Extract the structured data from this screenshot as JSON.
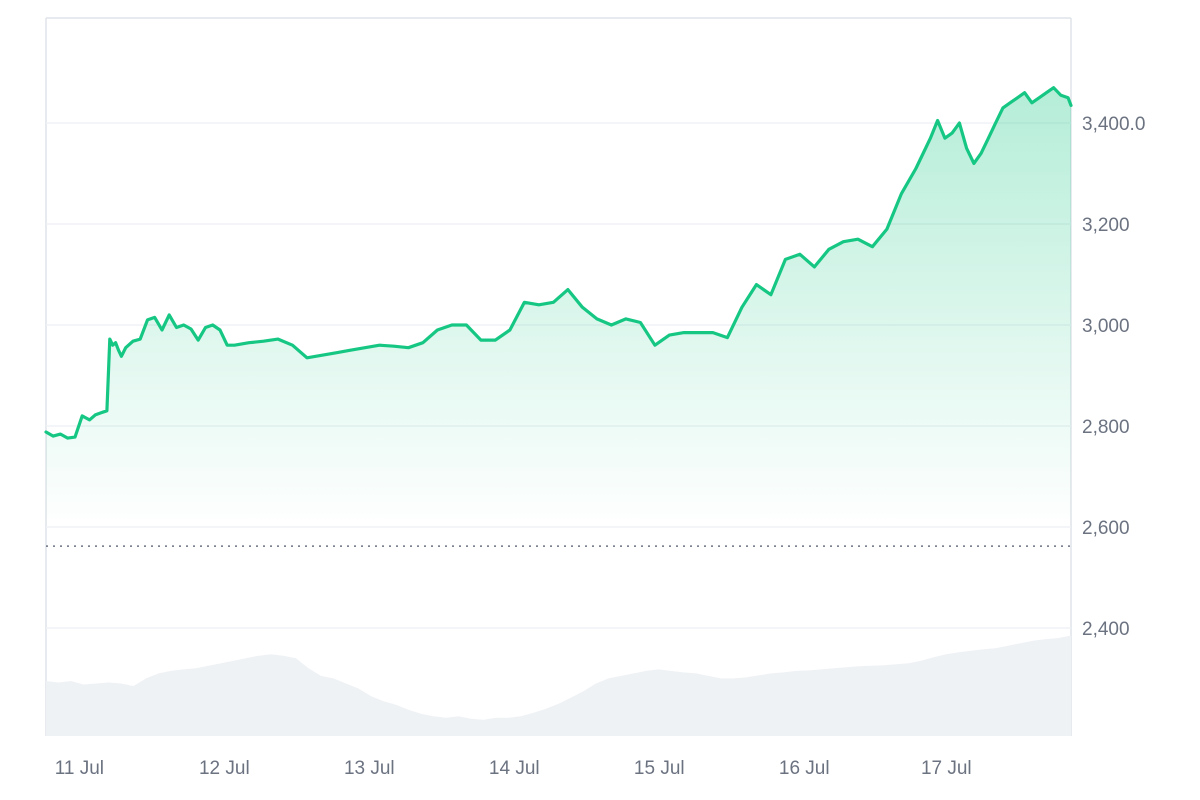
{
  "chart_data": {
    "type": "area",
    "y_axis": {
      "ticks": [
        2400,
        2600,
        2800,
        3000,
        3200,
        3400
      ],
      "tick_labels": [
        "2,400",
        "2,600",
        "2,800",
        "3,000",
        "3,200",
        "3,400.0"
      ],
      "range": [
        2186,
        3608
      ],
      "position": "right",
      "grid": true
    },
    "x_axis": {
      "tick_labels": [
        "11 Jul",
        "12 Jul",
        "13 Jul",
        "14 Jul",
        "15 Jul",
        "16 Jul",
        "17 Jul"
      ],
      "tick_values": [
        0.23,
        1.23,
        2.23,
        3.23,
        4.23,
        5.23,
        6.21
      ],
      "range": [
        0,
        7.07
      ]
    },
    "reference_line": {
      "value": 2562,
      "style": "dotted"
    },
    "series": [
      {
        "x": [
          0.0,
          0.05,
          0.1,
          0.15,
          0.2,
          0.25,
          0.3,
          0.34,
          0.38,
          0.42,
          0.44,
          0.46,
          0.48,
          0.5,
          0.52,
          0.55,
          0.6,
          0.65,
          0.7,
          0.75,
          0.8,
          0.85,
          0.9,
          0.95,
          1.0,
          1.05,
          1.1,
          1.15,
          1.2,
          1.25,
          1.3,
          1.4,
          1.5,
          1.6,
          1.7,
          1.8,
          1.9,
          2.0,
          2.1,
          2.2,
          2.3,
          2.4,
          2.5,
          2.6,
          2.7,
          2.8,
          2.9,
          3.0,
          3.1,
          3.2,
          3.3,
          3.4,
          3.5,
          3.6,
          3.7,
          3.8,
          3.9,
          4.0,
          4.1,
          4.2,
          4.3,
          4.4,
          4.5,
          4.6,
          4.7,
          4.8,
          4.9,
          5.0,
          5.1,
          5.2,
          5.3,
          5.4,
          5.5,
          5.6,
          5.7,
          5.8,
          5.9,
          6.0,
          6.1,
          6.15,
          6.2,
          6.25,
          6.3,
          6.35,
          6.4,
          6.45,
          6.5,
          6.55,
          6.6,
          6.65,
          6.7,
          6.75,
          6.8,
          6.85,
          6.9,
          6.95,
          7.0,
          7.05,
          7.07
        ],
        "values": [
          2788,
          2780,
          2784,
          2776,
          2778,
          2820,
          2812,
          2822,
          2826,
          2830,
          2972,
          2960,
          2965,
          2950,
          2938,
          2955,
          2968,
          2972,
          3010,
          3015,
          2990,
          3020,
          2995,
          3000,
          2992,
          2970,
          2995,
          3000,
          2990,
          2960,
          2960,
          2965,
          2968,
          2972,
          2960,
          2935,
          2940,
          2945,
          2950,
          2955,
          2960,
          2958,
          2955,
          2965,
          2990,
          3000,
          3000,
          2970,
          2970,
          2990,
          3045,
          3040,
          3045,
          3070,
          3035,
          3012,
          3000,
          3012,
          3005,
          2960,
          2980,
          2985,
          2985,
          2985,
          2975,
          3035,
          3080,
          3060,
          3130,
          3140,
          3115,
          3150,
          3165,
          3170,
          3155,
          3190,
          3260,
          3310,
          3370,
          3405,
          3370,
          3380,
          3400,
          3350,
          3320,
          3340,
          3370,
          3400,
          3430,
          3440,
          3450,
          3460,
          3440,
          3450,
          3460,
          3470,
          3455,
          3450,
          3435
        ]
      },
      {
        "values": [
          2295,
          2292,
          2295,
          2288,
          2290,
          2292,
          2290,
          2285,
          2300,
          2310,
          2315,
          2318,
          2320,
          2325,
          2330,
          2335,
          2340,
          2345,
          2348,
          2345,
          2340,
          2320,
          2305,
          2300,
          2290,
          2280,
          2265,
          2255,
          2248,
          2238,
          2230,
          2225,
          2222,
          2225,
          2220,
          2218,
          2222,
          2222,
          2225,
          2232,
          2240,
          2250,
          2262,
          2275,
          2290,
          2300,
          2305,
          2310,
          2315,
          2318,
          2315,
          2312,
          2310,
          2305,
          2300,
          2300,
          2302,
          2306,
          2310,
          2312,
          2315,
          2316,
          2318,
          2320,
          2322,
          2324,
          2325,
          2326,
          2328,
          2330,
          2335,
          2342,
          2348,
          2352,
          2355,
          2358,
          2360,
          2365,
          2370,
          2375,
          2378,
          2380,
          2385
        ]
      }
    ],
    "colors": {
      "line": "#16c784",
      "area_top": "#16c784",
      "volume_fill": "#eff2f5",
      "grid": "#eff2f5",
      "axis_border": "#dfe3e8",
      "reference_line": "#6b7280",
      "tick_text": "#6b7280"
    }
  }
}
